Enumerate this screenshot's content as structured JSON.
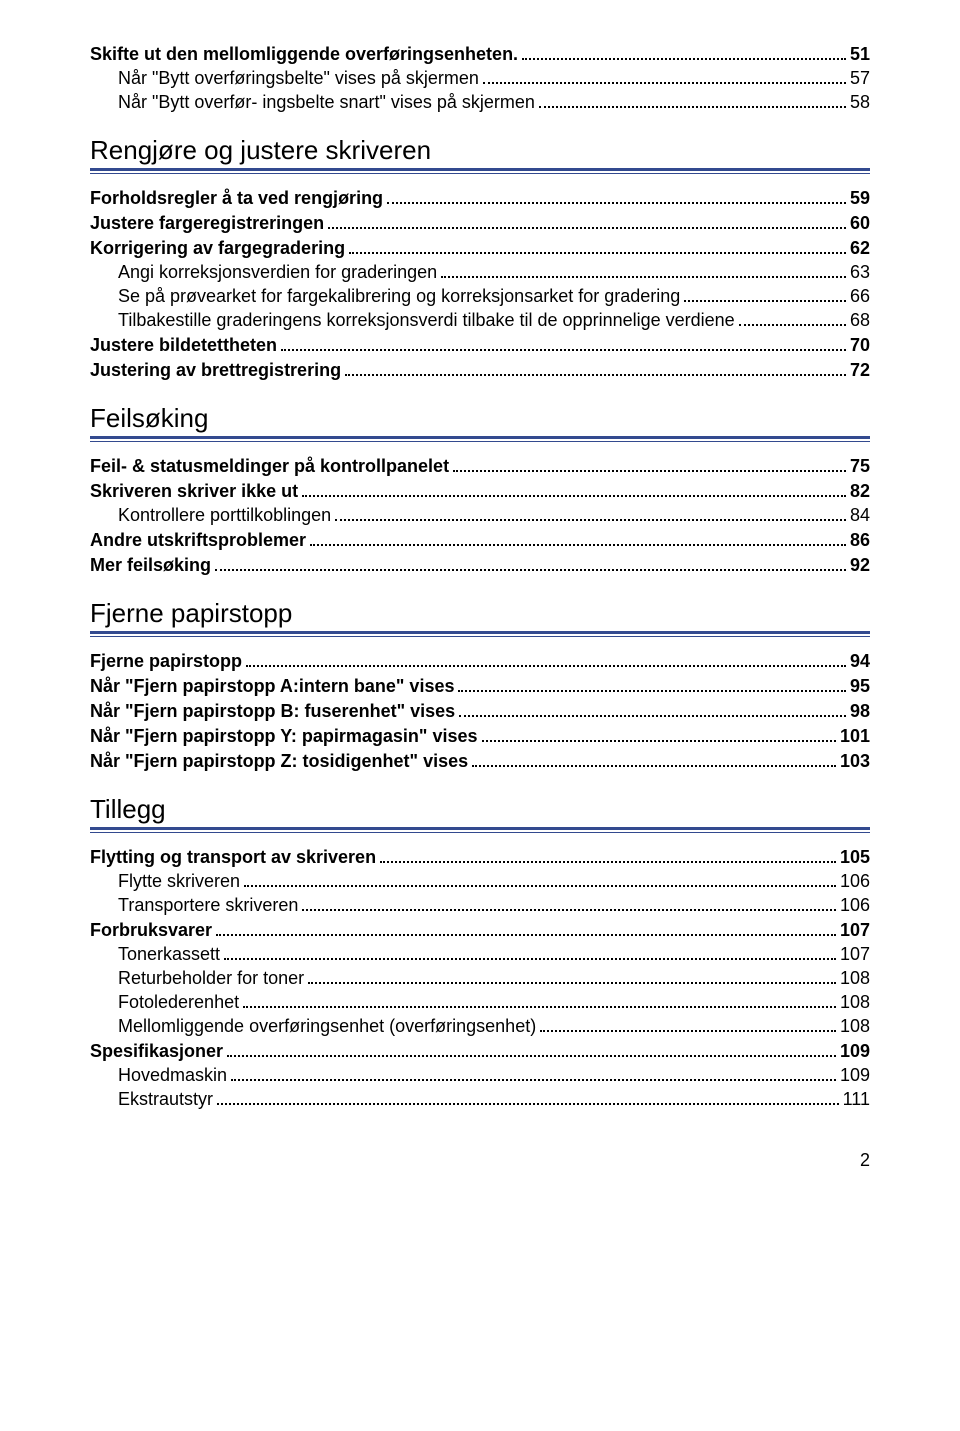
{
  "colors": {
    "text": "#000000",
    "background": "#ffffff",
    "rule": "#334a8f",
    "dot": "#000000"
  },
  "fontSizes": {
    "body_pt": 14,
    "section_title_pt": 20,
    "page_num_pt": 14
  },
  "pageNumber": "2",
  "toc": [
    {
      "level": 0,
      "label": "Skifte ut den mellomliggende overføringsenheten.",
      "page": "51"
    },
    {
      "level": 1,
      "label": "Når \"Bytt overføringsbelte\" vises på skjermen",
      "page": "57"
    },
    {
      "level": 1,
      "label": "Når \"Bytt overfør- ingsbelte snart\" vises på skjermen",
      "page": "58"
    },
    {
      "section": "Rengjøre og justere skriveren"
    },
    {
      "level": 0,
      "label": "Forholdsregler å ta ved rengjøring",
      "page": "59"
    },
    {
      "level": 0,
      "label": "Justere fargeregistreringen",
      "page": "60"
    },
    {
      "level": 0,
      "label": "Korrigering av fargegradering",
      "page": "62"
    },
    {
      "level": 1,
      "label": "Angi korreksjonsverdien for graderingen",
      "page": "63"
    },
    {
      "level": 1,
      "label": "Se på prøvearket for fargekalibrering og korreksjonsarket for gradering",
      "page": "66"
    },
    {
      "level": 1,
      "label": "Tilbakestille graderingens korreksjonsverdi tilbake til de opprinnelige verdiene",
      "page": "68"
    },
    {
      "level": 0,
      "label": "Justere bildetettheten",
      "page": "70"
    },
    {
      "level": 0,
      "label": "Justering av brettregistrering",
      "page": "72"
    },
    {
      "section": "Feilsøking"
    },
    {
      "level": 0,
      "label": "Feil- & statusmeldinger på kontrollpanelet",
      "page": "75"
    },
    {
      "level": 0,
      "label": "Skriveren skriver ikke ut",
      "page": "82"
    },
    {
      "level": 1,
      "label": "Kontrollere porttilkoblingen",
      "page": "84"
    },
    {
      "level": 0,
      "label": "Andre utskriftsproblemer",
      "page": "86"
    },
    {
      "level": 0,
      "label": "Mer feilsøking",
      "page": "92"
    },
    {
      "section": "Fjerne papirstopp"
    },
    {
      "level": 0,
      "label": "Fjerne papirstopp",
      "page": "94"
    },
    {
      "level": 0,
      "label": "Når \"Fjern papirstopp A:intern bane\" vises",
      "page": "95"
    },
    {
      "level": 0,
      "label": "Når \"Fjern papirstopp B: fuserenhet\" vises",
      "page": "98"
    },
    {
      "level": 0,
      "label": "Når \"Fjern papirstopp Y: papirmagasin\" vises",
      "page": "101"
    },
    {
      "level": 0,
      "label": "Når \"Fjern papirstopp Z: tosidigenhet\" vises",
      "page": "103"
    },
    {
      "section": "Tillegg"
    },
    {
      "level": 0,
      "label": "Flytting og transport av skriveren",
      "page": "105"
    },
    {
      "level": 1,
      "label": "Flytte skriveren",
      "page": "106"
    },
    {
      "level": 1,
      "label": "Transportere skriveren",
      "page": "106"
    },
    {
      "level": 0,
      "label": "Forbruksvarer",
      "page": "107"
    },
    {
      "level": 1,
      "label": "Tonerkassett",
      "page": "107"
    },
    {
      "level": 1,
      "label": "Returbeholder for toner",
      "page": "108"
    },
    {
      "level": 1,
      "label": "Fotolederenhet",
      "page": "108"
    },
    {
      "level": 1,
      "label": "Mellomliggende overføringsenhet (overføringsenhet)",
      "page": "108"
    },
    {
      "level": 0,
      "label": "Spesifikasjoner",
      "page": "109"
    },
    {
      "level": 1,
      "label": "Hovedmaskin",
      "page": "109"
    },
    {
      "level": 1,
      "label": "Ekstrautstyr",
      "page": "111"
    }
  ]
}
